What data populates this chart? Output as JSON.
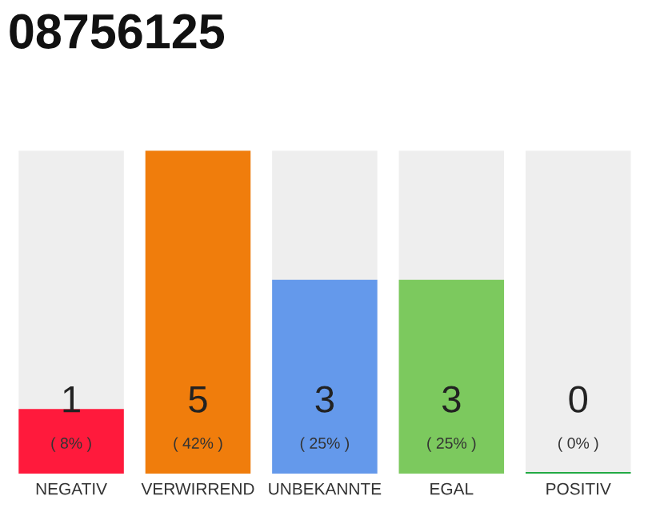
{
  "chart_data": {
    "type": "bar",
    "title": "08756125",
    "categories": [
      "NEGATIV",
      "VERWIRREND",
      "UNBEKANNTE",
      "EGAL",
      "POSITIV"
    ],
    "values": [
      1,
      5,
      3,
      3,
      0
    ],
    "colors": [
      "#ff1a3c",
      "#f07d0c",
      "#6499eb",
      "#7cc95e",
      "#22aa44"
    ],
    "data_labels": true,
    "grid": false,
    "annotations": [
      "( 8% )",
      "( 42% )",
      "( 25% )",
      "( 25% )",
      "( 0% )"
    ]
  }
}
